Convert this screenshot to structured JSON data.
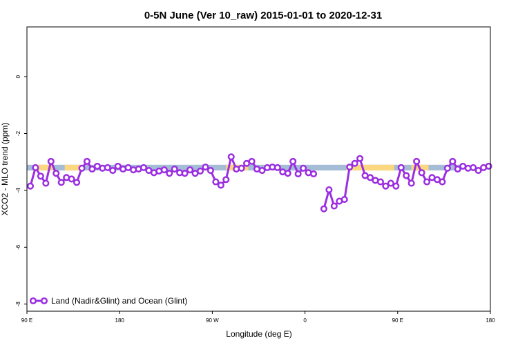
{
  "chart_data": {
    "type": "line",
    "title": "0-5N June (Ver 10_raw)   2015-01-01 to 2020-12-31",
    "xlabel": "Longitude (deg E)",
    "ylabel": "XCO2 - MLO trend (ppm)",
    "xlim": [
      -90,
      180
    ],
    "ylim": [
      -8.25,
      1.75
    ],
    "x_ticks": [
      {
        "value": -90,
        "label": "90 E"
      },
      {
        "value": -36,
        "label": "180"
      },
      {
        "value": 18,
        "label": "90 W"
      },
      {
        "value": 72,
        "label": "0"
      },
      {
        "value": 126,
        "label": "90 E"
      },
      {
        "value": 180,
        "label": "180"
      }
    ],
    "y_ticks": [
      {
        "value": 0,
        "label": "0"
      },
      {
        "value": -2,
        "label": "-2"
      },
      {
        "value": -4,
        "label": "-4"
      },
      {
        "value": -6,
        "label": "-6"
      },
      {
        "value": -8,
        "label": "-8"
      }
    ],
    "background_band": {
      "y_range": [
        -3.3,
        -3.1
      ],
      "segments": [
        {
          "x_range": [
            -90,
            162
          ],
          "surface": "ocean",
          "color": "#a4bcd6"
        },
        {
          "x_range": [
            -84,
            -75
          ],
          "surface": "land",
          "color": "#fbd87f"
        },
        {
          "x_range": [
            -68,
            -59
          ],
          "surface": "land",
          "color": "#fbd87f"
        },
        {
          "x_range": [
            26,
            39
          ],
          "surface": "land",
          "color": "#fbd87f"
        },
        {
          "x_range": [
            96,
            124
          ],
          "surface": "land",
          "color": "#fbd87f"
        },
        {
          "x_range": [
            134,
            144
          ],
          "surface": "land",
          "color": "#fbd87f"
        }
      ]
    },
    "series": [
      {
        "name": "Land (Nadir&Glint) and Ocean (Glint)",
        "color": "#9b2ee0",
        "segments": [
          {
            "x": [
              -88,
              -85,
              -82,
              -79,
              -76,
              -73,
              -70,
              -67,
              -64,
              -61,
              -58,
              -55,
              -52,
              -49,
              -46,
              -43,
              -40,
              -37,
              -34,
              -31,
              -28,
              -25,
              -22,
              -19,
              -16,
              -13,
              -10,
              -7,
              -4,
              -1,
              2,
              5,
              8,
              11,
              14,
              17,
              20,
              23,
              26,
              29,
              32,
              35,
              38,
              41,
              44,
              47,
              50,
              53,
              56,
              59,
              62,
              65,
              68,
              71,
              74,
              77
            ],
            "y": [
              -3.85,
              -3.2,
              -3.5,
              -3.75,
              -2.98,
              -3.4,
              -3.72,
              -3.55,
              -3.6,
              -3.72,
              -3.22,
              -2.98,
              -3.25,
              -3.15,
              -3.22,
              -3.2,
              -3.3,
              -3.15,
              -3.25,
              -3.2,
              -3.28,
              -3.25,
              -3.2,
              -3.3,
              -3.38,
              -3.32,
              -3.28,
              -3.4,
              -3.25,
              -3.38,
              -3.4,
              -3.28,
              -3.4,
              -3.32,
              -3.18,
              -3.3,
              -3.7,
              -3.82,
              -3.62,
              -2.82,
              -3.25,
              -3.22,
              -3.05,
              -2.98,
              -3.25,
              -3.3,
              -3.2,
              -3.18,
              -3.2,
              -3.35,
              -3.4,
              -2.98,
              -3.42,
              -3.22,
              -3.38,
              -3.42
            ]
          },
          {
            "x": [
              83,
              86,
              89,
              92,
              95,
              98,
              101,
              104,
              107,
              110,
              113,
              116,
              119,
              122,
              125,
              128,
              131,
              134,
              137,
              140,
              143,
              146,
              149,
              152,
              155,
              158,
              161,
              164,
              167,
              170,
              173,
              176,
              179
            ],
            "y": [
              -4.65,
              -3.98,
              -4.55,
              -4.38,
              -4.32,
              -3.18,
              -3.05,
              -2.88,
              -3.48,
              -3.55,
              -3.65,
              -3.7,
              -3.85,
              -3.75,
              -3.85,
              -3.2,
              -3.48,
              -3.75,
              -2.98,
              -3.38,
              -3.7,
              -3.55,
              -3.62,
              -3.7,
              -3.22,
              -2.98,
              -3.25,
              -3.15,
              -3.22,
              -3.2,
              -3.3,
              -3.2,
              -3.15
            ]
          }
        ]
      }
    ],
    "legend": {
      "position": "bottom-left"
    }
  }
}
